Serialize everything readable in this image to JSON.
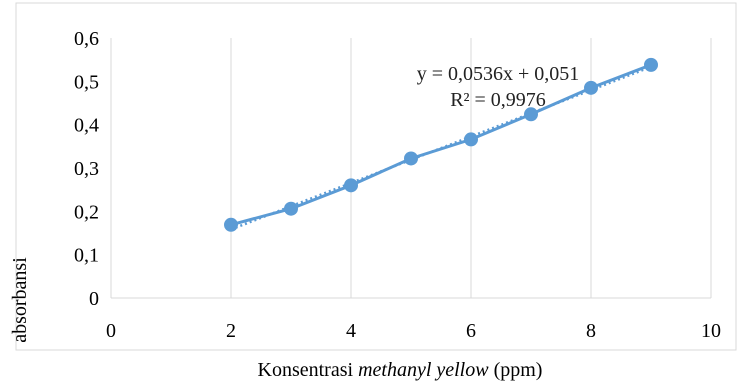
{
  "chart_data": {
    "type": "scatter",
    "x": [
      2,
      3,
      4,
      5,
      6,
      7,
      8,
      9
    ],
    "series": [
      {
        "values": [
          0.169,
          0.206,
          0.26,
          0.322,
          0.366,
          0.424,
          0.485,
          0.538
        ]
      }
    ],
    "trendline": {
      "type": "linear",
      "slope": 0.0536,
      "intercept": 0.051,
      "equation": "y = 0,0536x + 0,051",
      "r2_text": "R² = 0,9976"
    },
    "xlabel_prefix": "Konsentrasi ",
    "xlabel_italic": "methanyl yellow",
    "xlabel_suffix": " (ppm)",
    "ylabel": "absorbansi",
    "xlim": [
      0,
      10
    ],
    "ylim": [
      0,
      0.6
    ],
    "x_ticks": [
      "0",
      "2",
      "4",
      "6",
      "8",
      "10"
    ],
    "y_ticks": [
      "0",
      "0,1",
      "0,2",
      "0,3",
      "0,4",
      "0,5",
      "0,6"
    ],
    "grid": "vertical",
    "series_color": "#5B9BD5",
    "gridline_color": "#D9D9D9"
  }
}
